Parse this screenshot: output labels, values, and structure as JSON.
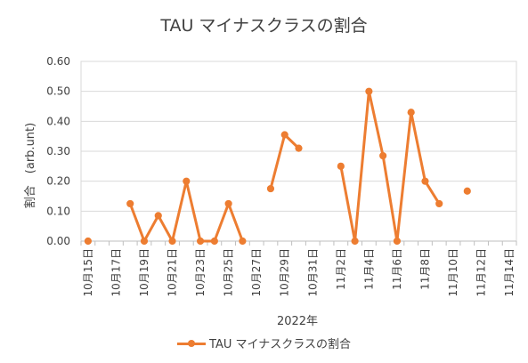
{
  "chart_data": {
    "type": "line",
    "title": "TAU マイナスクラスの割合",
    "xlabel": "2022年",
    "ylabel": "割合　(arb.unt)",
    "ylim": [
      0,
      0.6
    ],
    "yticks": [
      "0.00",
      "0.10",
      "0.20",
      "0.30",
      "0.40",
      "0.50",
      "0.60"
    ],
    "xticks": [
      "10月15日",
      "10月17日",
      "10月19日",
      "10月21日",
      "10月23日",
      "10月25日",
      "10月27日",
      "10月29日",
      "10月31日",
      "11月2日",
      "11月4日",
      "11月6日",
      "11月8日",
      "11月10日",
      "11月12日",
      "11月14日"
    ],
    "grid": true,
    "legend_position": "bottom",
    "series": [
      {
        "name": "TAU マイナスクラスの割合",
        "color": "#ED7D31",
        "x": [
          "10月15日",
          "10月16日",
          "10月17日",
          "10月18日",
          "10月19日",
          "10月20日",
          "10月21日",
          "10月22日",
          "10月23日",
          "10月24日",
          "10月25日",
          "10月26日",
          "10月27日",
          "10月28日",
          "10月29日",
          "10月30日",
          "10月31日",
          "11月1日",
          "11月2日",
          "11月3日",
          "11月4日",
          "11月5日",
          "11月6日",
          "11月7日",
          "11月8日",
          "11月9日",
          "11月10日",
          "11月11日",
          "11月12日",
          "11月13日",
          "11月14日"
        ],
        "values": [
          0.0,
          null,
          null,
          0.125,
          0.0,
          0.085,
          0.0,
          0.2,
          0.0,
          0.0,
          0.125,
          0.0,
          null,
          0.175,
          0.355,
          0.31,
          null,
          null,
          0.25,
          0.0,
          0.5,
          0.285,
          0.0,
          0.43,
          0.2,
          0.125,
          null,
          0.167,
          null,
          null,
          null
        ]
      }
    ]
  }
}
